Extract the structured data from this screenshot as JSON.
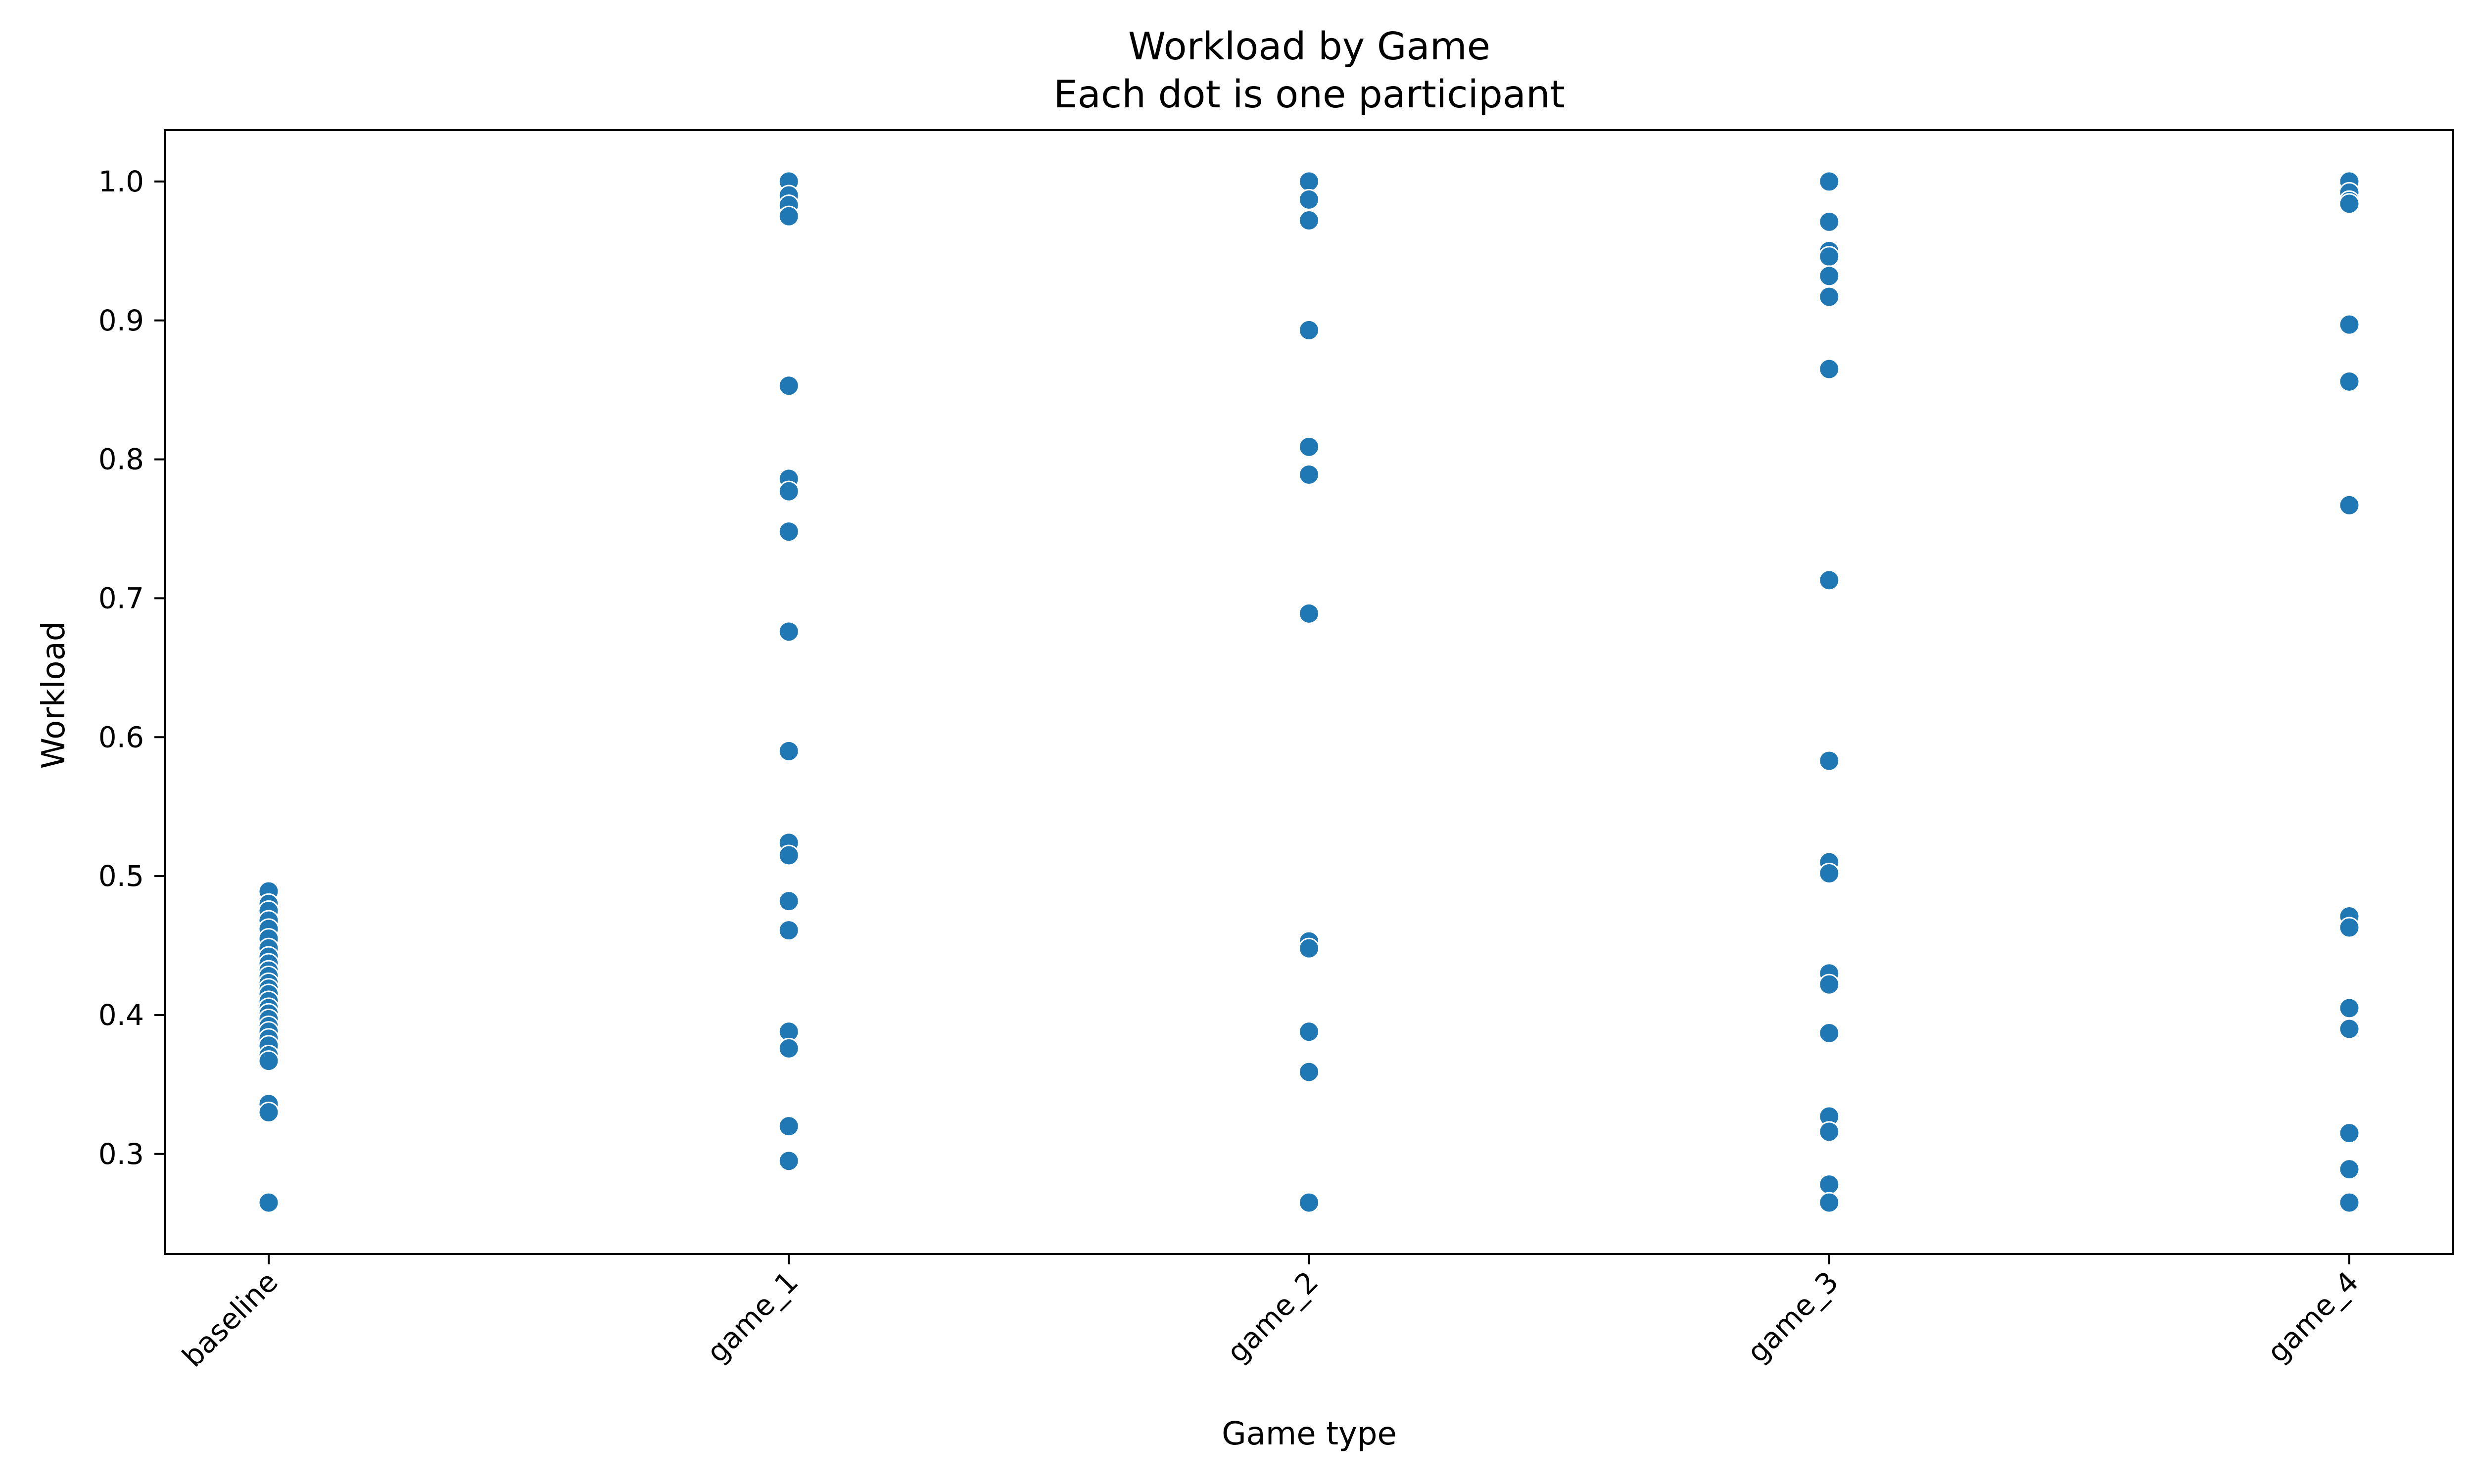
{
  "chart_data": {
    "type": "scatter",
    "title": "Workload by Game",
    "subtitle": "Each dot is one participant",
    "xlabel": "Game type",
    "ylabel": "Workload",
    "categories": [
      "baseline",
      "game_1",
      "game_2",
      "game_3",
      "game_4"
    ],
    "ylim": [
      0.228,
      1.037
    ],
    "yticks": [
      0.3,
      0.4,
      0.5,
      0.6,
      0.7,
      0.8,
      0.9,
      1.0
    ],
    "ytick_labels": [
      "0.3",
      "0.4",
      "0.5",
      "0.6",
      "0.7",
      "0.8",
      "0.9",
      "1.0"
    ],
    "grid": false,
    "marker_color": "#1f77b4",
    "series": [
      {
        "category": "baseline",
        "values": [
          0.489,
          0.48,
          0.475,
          0.468,
          0.462,
          0.455,
          0.448,
          0.442,
          0.437,
          0.432,
          0.428,
          0.423,
          0.419,
          0.415,
          0.41,
          0.405,
          0.401,
          0.397,
          0.392,
          0.388,
          0.383,
          0.378,
          0.371,
          0.367,
          0.336,
          0.33,
          0.265
        ]
      },
      {
        "category": "game_1",
        "values": [
          1.0,
          0.99,
          0.983,
          0.975,
          0.853,
          0.786,
          0.777,
          0.748,
          0.676,
          0.59,
          0.524,
          0.515,
          0.482,
          0.461,
          0.388,
          0.376,
          0.32,
          0.295
        ]
      },
      {
        "category": "game_2",
        "values": [
          1.0,
          0.987,
          0.972,
          0.893,
          0.809,
          0.789,
          0.689,
          0.453,
          0.448,
          0.388,
          0.359,
          0.265
        ]
      },
      {
        "category": "game_3",
        "values": [
          1.0,
          0.971,
          0.95,
          0.946,
          0.932,
          0.917,
          0.865,
          0.713,
          0.583,
          0.51,
          0.502,
          0.43,
          0.422,
          0.387,
          0.327,
          0.316,
          0.278,
          0.265
        ]
      },
      {
        "category": "game_4",
        "values": [
          1.0,
          0.992,
          0.986,
          0.984,
          0.897,
          0.856,
          0.767,
          0.471,
          0.463,
          0.405,
          0.39,
          0.315,
          0.289,
          0.265
        ]
      }
    ]
  }
}
